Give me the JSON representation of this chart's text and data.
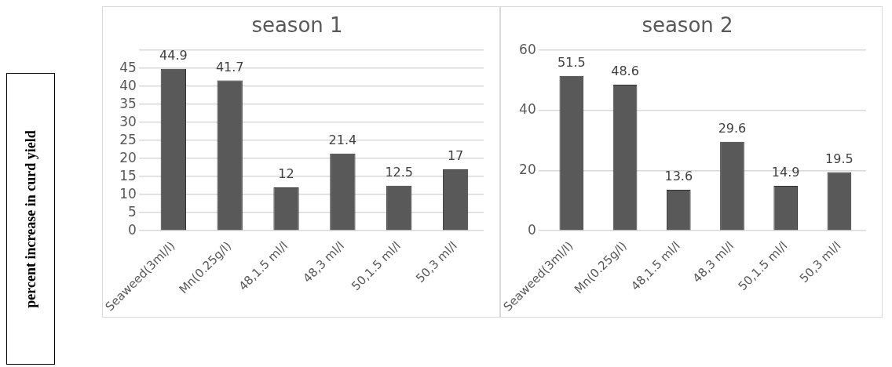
{
  "chart_data": [
    {
      "type": "bar",
      "title": "season 1",
      "ylabel": "percent increase in curd yield",
      "categories": [
        "Seaweed(3ml/l)",
        "Mn(0.25g/l)",
        "48,1.5 ml/l",
        "48,3 ml/l",
        "50,1.5 ml/l",
        "50,3 ml/l"
      ],
      "values": [
        44.9,
        41.7,
        12,
        21.4,
        12.5,
        17
      ],
      "color": "#595959",
      "ylim": [
        0,
        50
      ],
      "yticks": [
        0,
        5,
        10,
        15,
        20,
        25,
        30,
        35,
        40,
        45,
        {
          "value": 50,
          "label": null
        }
      ],
      "grid": "y",
      "data_labels": true
    },
    {
      "type": "bar",
      "title": "season 2",
      "categories": [
        "Seaweed(3ml/l)",
        "Mn(0.25g/l)",
        "48,1.5 ml/l",
        "48,3 ml/l",
        "50,1.5 ml/l",
        "50,3 ml/l"
      ],
      "values": [
        51.5,
        48.6,
        13.6,
        29.6,
        14.9,
        19.5
      ],
      "color": "#595959",
      "ylim": [
        0,
        60
      ],
      "yticks": [
        0,
        20,
        40,
        60
      ],
      "grid": "y",
      "data_labels": true
    }
  ]
}
